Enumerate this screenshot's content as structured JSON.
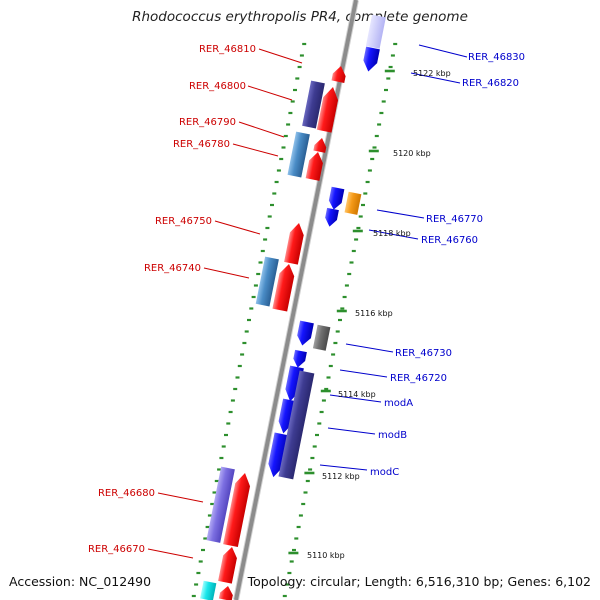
{
  "title": "Rhodococcus erythropolis PR4, complete genome",
  "accession": "Accession: NC_012490",
  "summary": "Topology: circular; Length: 6,516,310 bp; Genes: 6,102",
  "colors": {
    "forward_label": "#cc0000",
    "reverse_label": "#0000cc",
    "backbone": "#8c8c8c",
    "tick": "#2d8f2d",
    "red": "#ee0000",
    "blue": "#1010ee",
    "darkpurple": "#3c3a8a",
    "steelblue": "#3d7fb8",
    "orange": "#f39a1a",
    "gray": "#6b6b6b",
    "lavender": "#7a6ee0",
    "cyan": "#18e4e8"
  },
  "scale_labels": [
    "5122 kbp",
    "5120 kbp",
    "5118 kbp",
    "5116 kbp",
    "5114 kbp",
    "5112 kbp",
    "5110 kbp"
  ],
  "forward_genes": [
    "RER_46810",
    "RER_46800",
    "RER_46790",
    "RER_46780",
    "RER_46750",
    "RER_46740",
    "RER_46680",
    "RER_46670"
  ],
  "reverse_genes": [
    "RER_46830",
    "RER_46820",
    "RER_46770",
    "RER_46760",
    "RER_46730",
    "RER_46720",
    "modA",
    "modB",
    "modC"
  ]
}
